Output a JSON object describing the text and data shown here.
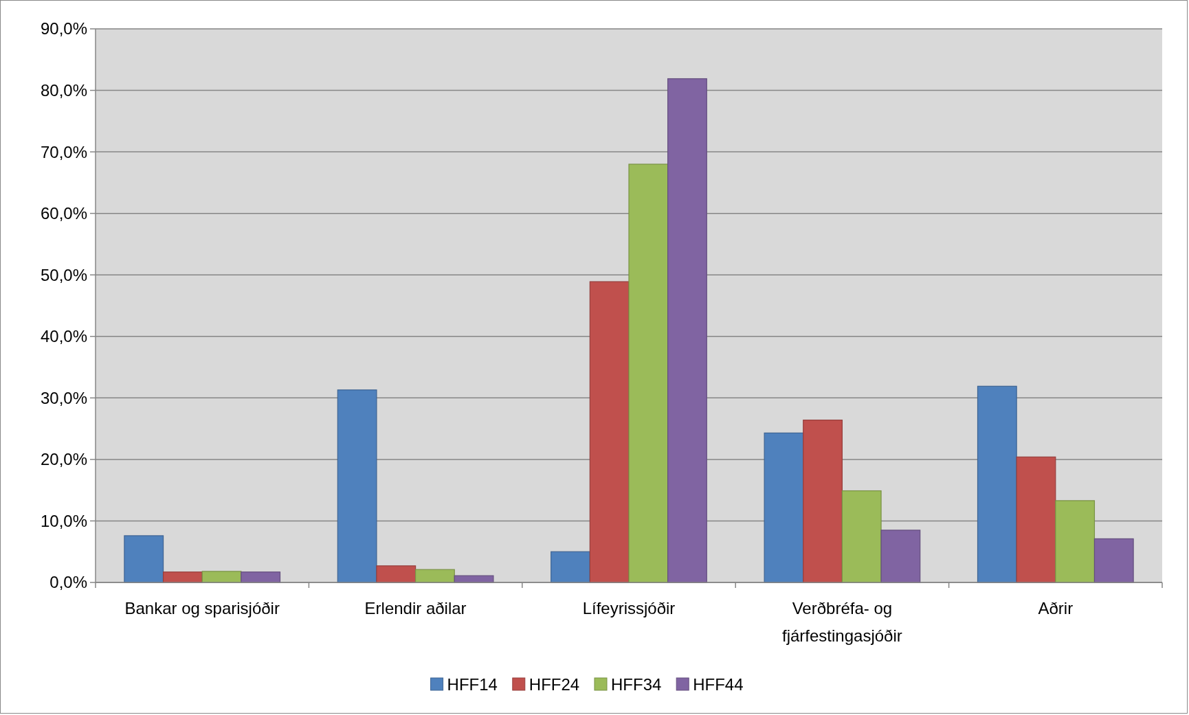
{
  "chart_data": {
    "type": "bar",
    "categories": [
      "Bankar og sparisjóðir",
      "Erlendir aðilar",
      "Lífeyrissjóðir",
      "Verðbréfa- og fjárfestingasjóðir",
      "Aðrir"
    ],
    "series": [
      {
        "name": "HFF14",
        "color": "#4f81bd",
        "values": [
          7.6,
          31.3,
          5.0,
          24.3,
          31.9
        ]
      },
      {
        "name": "HFF24",
        "color": "#c0504d",
        "values": [
          1.7,
          2.7,
          48.9,
          26.4,
          20.4
        ]
      },
      {
        "name": "HFF34",
        "color": "#9bbb59",
        "values": [
          1.8,
          2.1,
          68.0,
          14.9,
          13.3
        ]
      },
      {
        "name": "HFF44",
        "color": "#8064a2",
        "values": [
          1.7,
          1.1,
          81.9,
          8.5,
          7.1
        ]
      }
    ],
    "ylim": [
      0,
      90
    ],
    "yticks": [
      {
        "value": 0,
        "label": "0,0%"
      },
      {
        "value": 10,
        "label": "10,0%"
      },
      {
        "value": 20,
        "label": "20,0%"
      },
      {
        "value": 30,
        "label": "30,0%"
      },
      {
        "value": 40,
        "label": "40,0%"
      },
      {
        "value": 50,
        "label": "50,0%"
      },
      {
        "value": 60,
        "label": "60,0%"
      },
      {
        "value": 70,
        "label": "70,0%"
      },
      {
        "value": 80,
        "label": "80,0%"
      },
      {
        "value": 90,
        "label": "90,0%"
      }
    ],
    "grid": "y",
    "legend": "bottom"
  }
}
